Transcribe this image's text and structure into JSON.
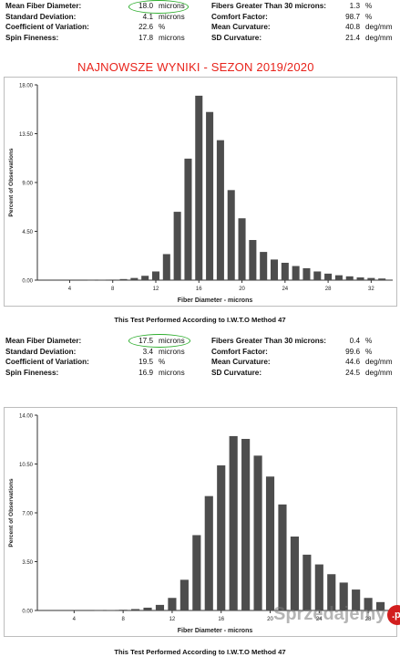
{
  "test1": {
    "stats_left": [
      {
        "label": "Mean Fiber Diameter:",
        "value": "18.0",
        "unit": "microns"
      },
      {
        "label": "Standard Deviation:",
        "value": "4.1",
        "unit": "microns"
      },
      {
        "label": "Coefficient of Variation:",
        "value": "22.6",
        "unit": "%"
      },
      {
        "label": "Spin Fineness:",
        "value": "17.8",
        "unit": "microns"
      }
    ],
    "stats_right": [
      {
        "label": "Fibers Greater Than 30 microns:",
        "value": "1.3",
        "unit": "%"
      },
      {
        "label": "Comfort Factor:",
        "value": "98.7",
        "unit": "%"
      },
      {
        "label": "Mean Curvature:",
        "value": "40.8",
        "unit": "deg/mm"
      },
      {
        "label": "SD Curvature:",
        "value": "21.4",
        "unit": "deg/mm"
      }
    ],
    "method": "This Test Performed According to I.W.T.O Method 47"
  },
  "banner": "NAJNOWSZE WYNIKI - SEZON 2019/2020",
  "test2": {
    "stats_left": [
      {
        "label": "Mean Fiber Diameter:",
        "value": "17.5",
        "unit": "microns"
      },
      {
        "label": "Standard Deviation:",
        "value": "3.4",
        "unit": "microns"
      },
      {
        "label": "Coefficient of Variation:",
        "value": "19.5",
        "unit": "%"
      },
      {
        "label": "Spin Fineness:",
        "value": "16.9",
        "unit": "microns"
      }
    ],
    "stats_right": [
      {
        "label": "Fibers Greater Than 30 microns:",
        "value": "0.4",
        "unit": "%"
      },
      {
        "label": "Comfort Factor:",
        "value": "99.6",
        "unit": "%"
      },
      {
        "label": "Mean Curvature:",
        "value": "44.6",
        "unit": "deg/mm"
      },
      {
        "label": "SD Curvature:",
        "value": "24.5",
        "unit": "deg/mm"
      }
    ],
    "method": "This Test Performed According to I.W.T.O Method 47"
  },
  "watermark": {
    "text": "Sprzedajemy",
    "badge": ".pl"
  },
  "colors": {
    "bars": "#4d4d4d",
    "highlight_circle": "#2fae2f",
    "banner": "#e8231b"
  },
  "chart_data": [
    {
      "type": "bar",
      "xlabel": "Fiber Diameter - microns",
      "ylabel": "Percent of Observations",
      "xlim": [
        1,
        34
      ],
      "ylim": [
        0,
        18
      ],
      "yticks": [
        "0.00",
        "4.50",
        "9.00",
        "13.50",
        "18.00"
      ],
      "xticks": [
        "4",
        "8",
        "12",
        "16",
        "20",
        "24",
        "28",
        "32"
      ],
      "x": [
        6,
        7,
        8,
        9,
        10,
        11,
        12,
        13,
        14,
        15,
        16,
        17,
        18,
        19,
        20,
        21,
        22,
        23,
        24,
        25,
        26,
        27,
        28,
        29,
        30,
        31,
        32,
        33
      ],
      "values": [
        0.02,
        0.03,
        0.05,
        0.1,
        0.2,
        0.4,
        0.8,
        2.4,
        6.3,
        11.2,
        17.0,
        15.5,
        12.9,
        8.3,
        5.7,
        3.7,
        2.6,
        1.9,
        1.6,
        1.3,
        1.1,
        0.8,
        0.6,
        0.45,
        0.35,
        0.25,
        0.2,
        0.15
      ]
    },
    {
      "type": "bar",
      "xlabel": "Fiber Diameter - microns",
      "ylabel": "Percent of Observations",
      "xlim": [
        1,
        30
      ],
      "ylim": [
        0,
        14
      ],
      "yticks": [
        "0.00",
        "3.50",
        "7.00",
        "10.50",
        "14.00"
      ],
      "xticks": [
        "4",
        "8",
        "12",
        "16",
        "20",
        "24",
        "28"
      ],
      "x": [
        6,
        7,
        8,
        9,
        10,
        11,
        12,
        13,
        14,
        15,
        16,
        17,
        18,
        19,
        20,
        21,
        22,
        23,
        24,
        25,
        26,
        27,
        28,
        29
      ],
      "values": [
        0.02,
        0.03,
        0.05,
        0.1,
        0.2,
        0.4,
        0.9,
        2.2,
        5.4,
        8.2,
        10.4,
        12.5,
        12.3,
        11.1,
        9.6,
        7.6,
        5.3,
        4.0,
        3.3,
        2.6,
        2.0,
        1.5,
        0.9,
        0.6
      ]
    }
  ]
}
